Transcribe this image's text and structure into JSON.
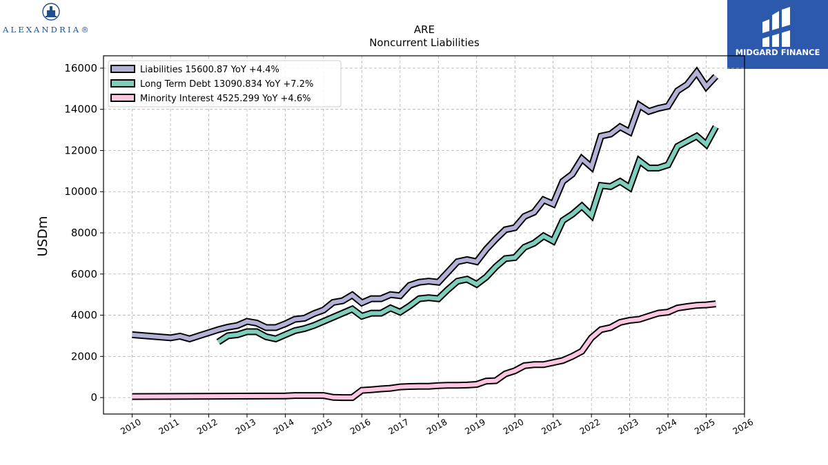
{
  "branding": {
    "left_logo_text": "ALEXANDRIA®",
    "right_logo_text": "MIDGARD FINANCE",
    "right_logo_bg": "#2d59ad"
  },
  "chart_data": {
    "type": "line",
    "title": "ARE",
    "subtitle": "Noncurrent  Liabilities",
    "ylabel": "USDm",
    "xlabel": "",
    "xlim": [
      2009.25,
      2026.0
    ],
    "ylim": [
      -800,
      16600
    ],
    "x_ticks": [
      "2010",
      "2011",
      "2012",
      "2013",
      "2014",
      "2015",
      "2016",
      "2017",
      "2018",
      "2019",
      "2020",
      "2021",
      "2022",
      "2023",
      "2024",
      "2025",
      "2026"
    ],
    "y_ticks": [
      0,
      2000,
      4000,
      6000,
      8000,
      10000,
      12000,
      14000,
      16000
    ],
    "grid": true,
    "legend_position": "top-left",
    "series": [
      {
        "name": "Liabilities",
        "legend": "Liabilities  15600.87 YoY +4.4%",
        "color": "#b3b1d6",
        "x": [
          2010.0,
          2011.0,
          2011.25,
          2011.5,
          2011.75,
          2012.0,
          2012.25,
          2012.5,
          2012.75,
          2013.0,
          2013.25,
          2013.5,
          2013.75,
          2014.0,
          2014.25,
          2014.5,
          2014.75,
          2015.0,
          2015.25,
          2015.5,
          2015.75,
          2016.0,
          2016.25,
          2016.5,
          2016.75,
          2017.0,
          2017.25,
          2017.5,
          2017.75,
          2018.0,
          2018.25,
          2018.5,
          2018.75,
          2019.0,
          2019.25,
          2019.5,
          2019.75,
          2020.0,
          2020.25,
          2020.5,
          2020.75,
          2021.0,
          2021.25,
          2021.5,
          2021.75,
          2022.0,
          2022.25,
          2022.5,
          2022.75,
          2023.0,
          2023.25,
          2023.5,
          2023.75,
          2024.0,
          2024.25,
          2024.5,
          2024.75,
          2025.0,
          2025.25
        ],
        "values": [
          3050,
          2900,
          2980,
          2850,
          3000,
          3150,
          3300,
          3420,
          3500,
          3700,
          3620,
          3400,
          3400,
          3580,
          3800,
          3850,
          4080,
          4250,
          4620,
          4700,
          4980,
          4600,
          4800,
          4800,
          5000,
          4950,
          5450,
          5600,
          5650,
          5600,
          6100,
          6600,
          6700,
          6600,
          7200,
          7700,
          8150,
          8250,
          8800,
          9000,
          9600,
          9400,
          10500,
          10850,
          11600,
          11200,
          12700,
          12800,
          13150,
          12900,
          14200,
          13900,
          14050,
          14150,
          14900,
          15200,
          15800,
          15100,
          15600
        ]
      },
      {
        "name": "Long Term Debt",
        "legend": "Long Term Debt  13090.834 YoY +7.2%",
        "color": "#7fcdbb",
        "x": [
          2012.25,
          2012.5,
          2012.75,
          2013.0,
          2013.25,
          2013.5,
          2013.75,
          2014.0,
          2014.25,
          2014.5,
          2014.75,
          2015.0,
          2015.25,
          2015.5,
          2015.75,
          2016.0,
          2016.25,
          2016.5,
          2016.75,
          2017.0,
          2017.25,
          2017.5,
          2017.75,
          2018.0,
          2018.25,
          2018.5,
          2018.75,
          2019.0,
          2019.25,
          2019.5,
          2019.75,
          2020.0,
          2020.25,
          2020.5,
          2020.75,
          2021.0,
          2021.25,
          2021.5,
          2021.75,
          2022.0,
          2022.25,
          2022.5,
          2022.75,
          2023.0,
          2023.25,
          2023.5,
          2023.75,
          2024.0,
          2024.25,
          2024.5,
          2024.75,
          2025.0,
          2025.25
        ],
        "values": [
          2700,
          3000,
          3050,
          3200,
          3200,
          2950,
          2850,
          3050,
          3250,
          3350,
          3500,
          3700,
          3900,
          4100,
          4300,
          3950,
          4100,
          4100,
          4350,
          4150,
          4450,
          4800,
          4850,
          4800,
          5250,
          5650,
          5750,
          5500,
          5850,
          6350,
          6750,
          6800,
          7300,
          7500,
          7850,
          7600,
          8600,
          8900,
          9300,
          8850,
          10300,
          10250,
          10500,
          10200,
          11500,
          11150,
          11150,
          11300,
          12200,
          12450,
          12700,
          12300,
          13150
        ]
      },
      {
        "name": "Minority Interest",
        "legend": "Minority Interest  4525.299 YoY +4.6%",
        "color": "#fcc5e0",
        "x": [
          2010.0,
          2014.0,
          2014.25,
          2015.0,
          2015.25,
          2015.5,
          2015.75,
          2016.0,
          2016.25,
          2016.5,
          2016.75,
          2017.0,
          2017.25,
          2017.5,
          2017.75,
          2018.0,
          2018.25,
          2018.5,
          2018.75,
          2019.0,
          2019.25,
          2019.5,
          2019.75,
          2020.0,
          2020.25,
          2020.5,
          2020.75,
          2021.0,
          2021.25,
          2021.5,
          2021.75,
          2022.0,
          2022.25,
          2022.5,
          2022.75,
          2023.0,
          2023.25,
          2023.5,
          2023.75,
          2024.0,
          2024.25,
          2024.5,
          2024.75,
          2025.0,
          2025.25
        ],
        "values": [
          50,
          80,
          100,
          100,
          10,
          0,
          0,
          350,
          380,
          420,
          450,
          520,
          540,
          550,
          550,
          580,
          600,
          600,
          610,
          640,
          800,
          820,
          1150,
          1300,
          1550,
          1600,
          1600,
          1700,
          1800,
          2000,
          2250,
          2900,
          3300,
          3400,
          3650,
          3750,
          3800,
          3950,
          4100,
          4150,
          4350,
          4420,
          4480,
          4500,
          4550
        ]
      }
    ]
  }
}
